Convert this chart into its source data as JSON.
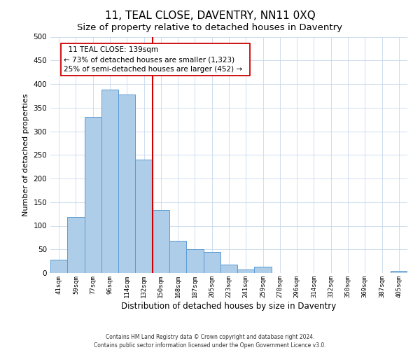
{
  "title": "11, TEAL CLOSE, DAVENTRY, NN11 0XQ",
  "subtitle": "Size of property relative to detached houses in Daventry",
  "xlabel": "Distribution of detached houses by size in Daventry",
  "ylabel": "Number of detached properties",
  "bar_labels": [
    "41sqm",
    "59sqm",
    "77sqm",
    "96sqm",
    "114sqm",
    "132sqm",
    "150sqm",
    "168sqm",
    "187sqm",
    "205sqm",
    "223sqm",
    "241sqm",
    "259sqm",
    "278sqm",
    "296sqm",
    "314sqm",
    "332sqm",
    "350sqm",
    "369sqm",
    "387sqm",
    "405sqm"
  ],
  "bar_values": [
    28,
    118,
    330,
    388,
    378,
    240,
    133,
    68,
    50,
    45,
    18,
    7,
    13,
    0,
    0,
    0,
    0,
    0,
    0,
    0,
    5
  ],
  "bar_color": "#aecde8",
  "bar_edge_color": "#5b9bd5",
  "vline_x": 5.5,
  "vline_color": "#cc0000",
  "annotation_title": "11 TEAL CLOSE: 139sqm",
  "annotation_line1": "← 73% of detached houses are smaller (1,323)",
  "annotation_line2": "25% of semi-detached houses are larger (452) →",
  "annotation_box_color": "#ffffff",
  "annotation_box_edge": "#cc0000",
  "ylim": [
    0,
    500
  ],
  "yticks": [
    0,
    50,
    100,
    150,
    200,
    250,
    300,
    350,
    400,
    450,
    500
  ],
  "footnote1": "Contains HM Land Registry data © Crown copyright and database right 2024.",
  "footnote2": "Contains public sector information licensed under the Open Government Licence v3.0.",
  "grid_color": "#c8d8ec",
  "title_fontsize": 11,
  "subtitle_fontsize": 9.5
}
